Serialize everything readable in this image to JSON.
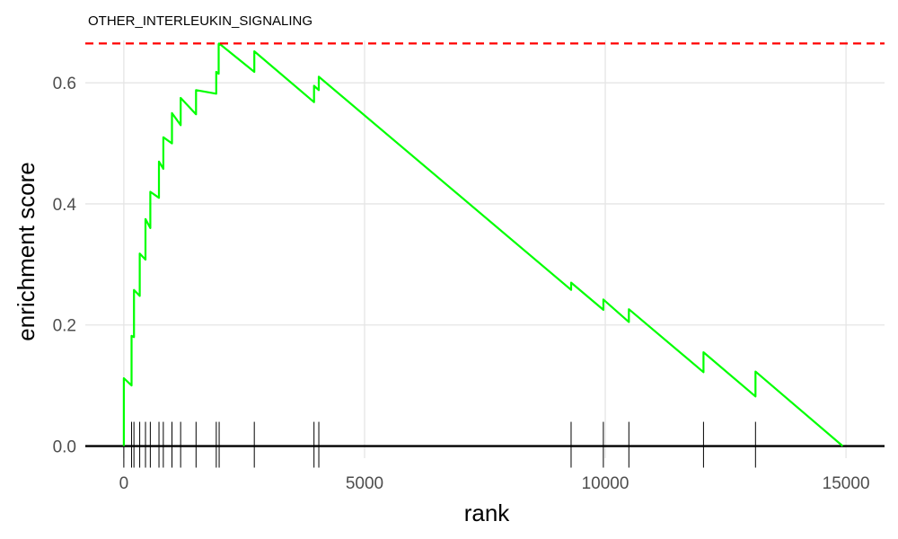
{
  "chart_data": {
    "type": "line",
    "title": "OTHER_INTERLEUKIN_SIGNALING",
    "xlabel": "rank",
    "ylabel": "enrichment score",
    "xlim": [
      -800,
      15800
    ],
    "ylim": [
      -0.02,
      0.67
    ],
    "x_ticks": [
      0,
      5000,
      10000,
      15000
    ],
    "x_tick_labels": [
      "0",
      "5000",
      "10000",
      "15000"
    ],
    "y_ticks": [
      0.0,
      0.2,
      0.4,
      0.6
    ],
    "y_tick_labels": [
      "0.0",
      "0.2",
      "0.4",
      "0.6"
    ],
    "grid": true,
    "max_es_reference": 0.665,
    "series": [
      {
        "color": "#00ff00",
        "x": [
          0,
          0,
          160,
          160,
          210,
          210,
          330,
          330,
          450,
          450,
          550,
          550,
          730,
          730,
          820,
          820,
          1000,
          1000,
          1180,
          1180,
          1500,
          1500,
          1920,
          1920,
          1970,
          1970,
          1980,
          1980,
          2710,
          2710,
          3950,
          3950,
          4050,
          4050,
          9290,
          9290,
          9960,
          9960,
          10490,
          10490,
          12040,
          12040,
          13120,
          13120,
          14930
        ],
        "y": [
          0.0,
          0.112,
          0.1,
          0.182,
          0.18,
          0.258,
          0.248,
          0.318,
          0.308,
          0.375,
          0.36,
          0.42,
          0.41,
          0.47,
          0.458,
          0.51,
          0.5,
          0.55,
          0.53,
          0.575,
          0.548,
          0.588,
          0.582,
          0.618,
          0.615,
          0.664,
          0.662,
          0.665,
          0.618,
          0.652,
          0.568,
          0.595,
          0.588,
          0.61,
          0.258,
          0.27,
          0.225,
          0.242,
          0.205,
          0.226,
          0.122,
          0.155,
          0.082,
          0.123,
          0.0
        ]
      }
    ],
    "hits": [
      0,
      160,
      210,
      330,
      450,
      550,
      730,
      820,
      1000,
      1180,
      1500,
      1920,
      1980,
      2710,
      3950,
      4050,
      9290,
      9960,
      10490,
      12040,
      13120
    ],
    "colors": {
      "curve": "#00ff00",
      "reference": "#ff0000",
      "hits": "#000000",
      "grid": "#e5e5e5"
    }
  }
}
